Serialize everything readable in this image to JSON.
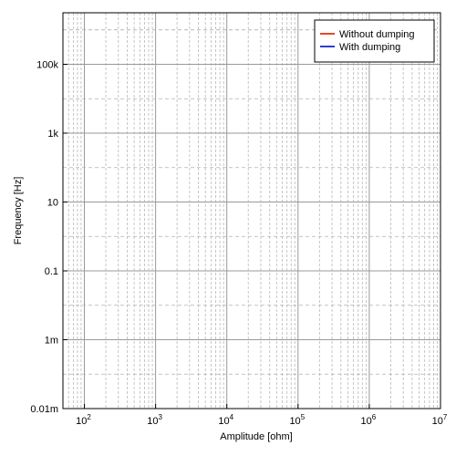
{
  "chart_data": {
    "type": "line",
    "title": "",
    "xlabel": "Amplitude [ohm]",
    "ylabel": "Frequency [Hz]",
    "x_scale": "log",
    "y_scale": "log",
    "xlim": [
      50,
      10000000
    ],
    "ylim": [
      0.01,
      10000000
    ],
    "x_ticks": [
      {
        "value": 100,
        "base": "10",
        "exp": "2"
      },
      {
        "value": 1000,
        "base": "10",
        "exp": "3"
      },
      {
        "value": 10000,
        "base": "10",
        "exp": "4"
      },
      {
        "value": 100000,
        "base": "10",
        "exp": "5"
      },
      {
        "value": 1000000,
        "base": "10",
        "exp": "6"
      },
      {
        "value": 10000000,
        "base": "10",
        "exp": "7"
      }
    ],
    "y_ticks": [
      {
        "value": 0.01,
        "label": "0.01m"
      },
      {
        "value": 1,
        "label": "1m"
      },
      {
        "value": 100,
        "label": "0.1"
      },
      {
        "value": 10000,
        "label": "10"
      },
      {
        "value": 1000000,
        "label": "1k"
      },
      {
        "value": 100000000,
        "label": "100k"
      }
    ],
    "grid": true,
    "legend_position": "top-right",
    "series": [
      {
        "name": "Without dumping",
        "color": "#e8462a",
        "x": [],
        "y": []
      },
      {
        "name": "With dumping",
        "color": "#2a3fd0",
        "x": [],
        "y": []
      }
    ]
  }
}
